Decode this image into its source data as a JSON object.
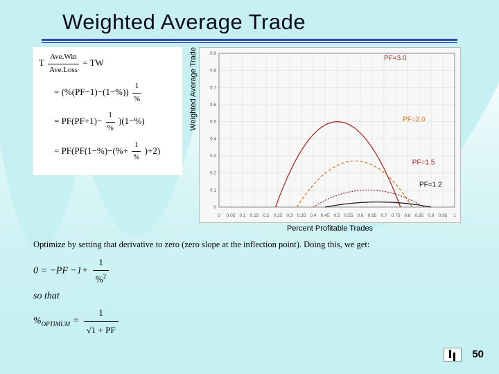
{
  "title": "Weighted Average Trade",
  "equations": {
    "line1_lhs": "T",
    "line1_frac_n": "Ave.Win",
    "line1_frac_d": "Ave.Loss",
    "line1_rhs": " = TW",
    "line2": "= (%(PF−1)−(1−%))",
    "line3a": "= PF(PF+1)−",
    "line3_frac_n": "1",
    "line3_frac_d": "%",
    "line3b": ")(1−%)",
    "line4a": "= PF(PF(1−%)−(%+",
    "line4_frac_n": "1",
    "line4_frac_d": "%",
    "line4b": ")+2)"
  },
  "chart": {
    "ylabel": "Weighted Average Trade",
    "xlabel": "Percent Profitable Trades",
    "xlim": [
      0,
      1.0
    ],
    "ylim": [
      0,
      0.9
    ],
    "xt": [
      0,
      0.05,
      0.1,
      0.15,
      0.2,
      0.25,
      0.3,
      0.35,
      0.4,
      0.45,
      0.5,
      0.55,
      0.6,
      0.65,
      0.7,
      0.75,
      0.8,
      0.85,
      0.9,
      0.95,
      1.0
    ],
    "yt": [
      0,
      0.1,
      0.2,
      0.3,
      0.4,
      0.5,
      0.6,
      0.7,
      0.8,
      0.9
    ],
    "bg": "#f7f7f7",
    "grid": "#d8d8d8",
    "series": [
      {
        "label": "PF=3.0",
        "color": "#b02a2a",
        "dash": "",
        "peak_x": 0.5,
        "top": 0.5,
        "x0": 0.24,
        "x1": 0.77,
        "lab_x": 0.7,
        "lab_y": 0.86
      },
      {
        "label": "PF=2.0",
        "color": "#d17a2a",
        "dash": "4 3",
        "peak_x": 0.58,
        "top": 0.27,
        "x0": 0.33,
        "x1": 0.82,
        "lab_x": 0.78,
        "lab_y": 0.5
      },
      {
        "label": "PF=1.5",
        "color": "#a23030",
        "dash": "2 2",
        "peak_x": 0.63,
        "top": 0.1,
        "x0": 0.4,
        "x1": 0.87,
        "lab_x": 0.82,
        "lab_y": 0.25
      },
      {
        "label": "PF=1.2",
        "color": "#1a1a1a",
        "dash": "",
        "peak_x": 0.68,
        "top": 0.03,
        "x0": 0.45,
        "x1": 0.9,
        "lab_x": 0.85,
        "lab_y": 0.12
      }
    ],
    "label_fontsize": 10
  },
  "aftertext": "Optimize by setting that derivative to zero (zero slope at the inflection point).  Doing this, we get:",
  "eq2": {
    "line1a": "0 = −PF −1+ ",
    "line1_frac_n": "1",
    "line1_frac_d": "%",
    "line1_sup": "2",
    "so": "so that",
    "line2_lhs": "%",
    "line2_sub": "OPTIMUM",
    "line2_eq": " = ",
    "line2_frac_n": "1",
    "line2_frac_d": "√1 + PF"
  },
  "pagenum": "50"
}
